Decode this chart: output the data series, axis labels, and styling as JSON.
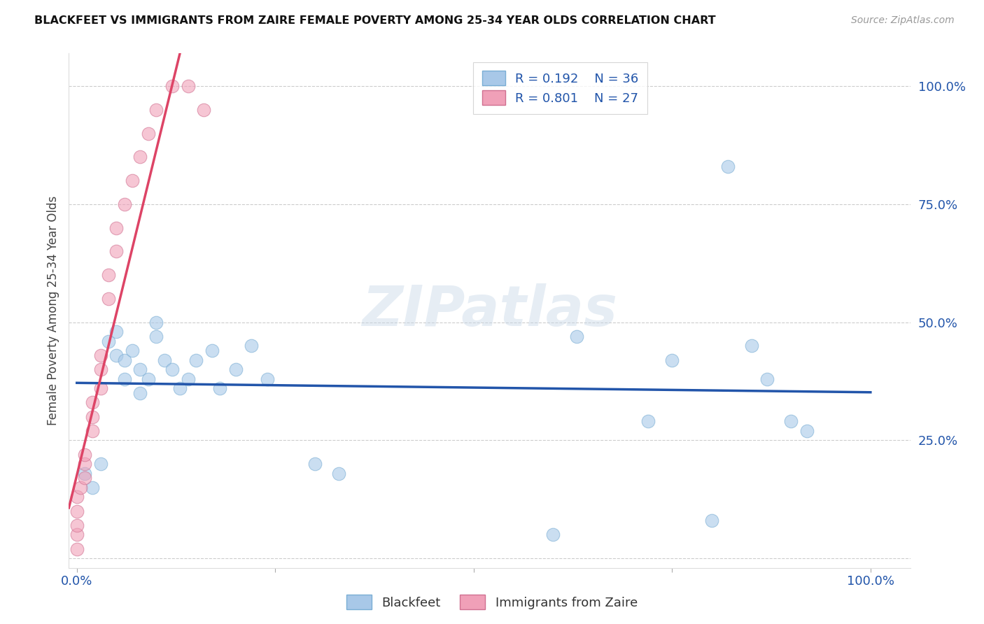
{
  "title": "BLACKFEET VS IMMIGRANTS FROM ZAIRE FEMALE POVERTY AMONG 25-34 YEAR OLDS CORRELATION CHART",
  "source": "Source: ZipAtlas.com",
  "ylabel": "Female Poverty Among 25-34 Year Olds",
  "watermark": "ZIPatlas",
  "blackfeet_R": 0.192,
  "blackfeet_N": 36,
  "zaire_R": 0.801,
  "zaire_N": 27,
  "blackfeet_color": "#a8c8e8",
  "blackfeet_edge": "#7aaed4",
  "zaire_color": "#f0a0b8",
  "zaire_edge": "#d07090",
  "blue_line_color": "#2255aa",
  "pink_line_color": "#dd4466",
  "blackfeet_x": [
    0.01,
    0.02,
    0.03,
    0.04,
    0.05,
    0.05,
    0.06,
    0.06,
    0.07,
    0.08,
    0.08,
    0.09,
    0.1,
    0.1,
    0.11,
    0.12,
    0.13,
    0.14,
    0.15,
    0.17,
    0.18,
    0.2,
    0.22,
    0.24,
    0.3,
    0.33,
    0.6,
    0.63,
    0.72,
    0.75,
    0.8,
    0.82,
    0.85,
    0.87,
    0.9,
    0.92
  ],
  "blackfeet_y": [
    0.18,
    0.15,
    0.2,
    0.46,
    0.43,
    0.48,
    0.38,
    0.42,
    0.44,
    0.35,
    0.4,
    0.38,
    0.47,
    0.5,
    0.42,
    0.4,
    0.36,
    0.38,
    0.42,
    0.44,
    0.36,
    0.4,
    0.45,
    0.38,
    0.2,
    0.18,
    0.05,
    0.47,
    0.29,
    0.42,
    0.08,
    0.83,
    0.45,
    0.38,
    0.29,
    0.27
  ],
  "zaire_x": [
    0.0,
    0.0,
    0.0,
    0.0,
    0.0,
    0.005,
    0.01,
    0.01,
    0.01,
    0.02,
    0.02,
    0.02,
    0.03,
    0.03,
    0.03,
    0.04,
    0.04,
    0.05,
    0.05,
    0.06,
    0.07,
    0.08,
    0.09,
    0.1,
    0.12,
    0.14,
    0.16
  ],
  "zaire_y": [
    0.02,
    0.05,
    0.07,
    0.1,
    0.13,
    0.15,
    0.17,
    0.2,
    0.22,
    0.27,
    0.3,
    0.33,
    0.36,
    0.4,
    0.43,
    0.55,
    0.6,
    0.65,
    0.7,
    0.75,
    0.8,
    0.85,
    0.9,
    0.95,
    1.0,
    1.0,
    0.95
  ],
  "ylim": [
    -0.02,
    1.07
  ],
  "xlim": [
    -0.01,
    1.05
  ],
  "yticks": [
    0.0,
    0.25,
    0.5,
    0.75,
    1.0
  ],
  "ytick_labels": [
    "",
    "25.0%",
    "50.0%",
    "75.0%",
    "100.0%"
  ],
  "xticks": [
    0.0,
    0.25,
    0.5,
    0.75,
    1.0
  ],
  "xtick_labels": [
    "0.0%",
    "",
    "",
    "",
    "100.0%"
  ],
  "grid_color": "#cccccc",
  "background_color": "#ffffff"
}
